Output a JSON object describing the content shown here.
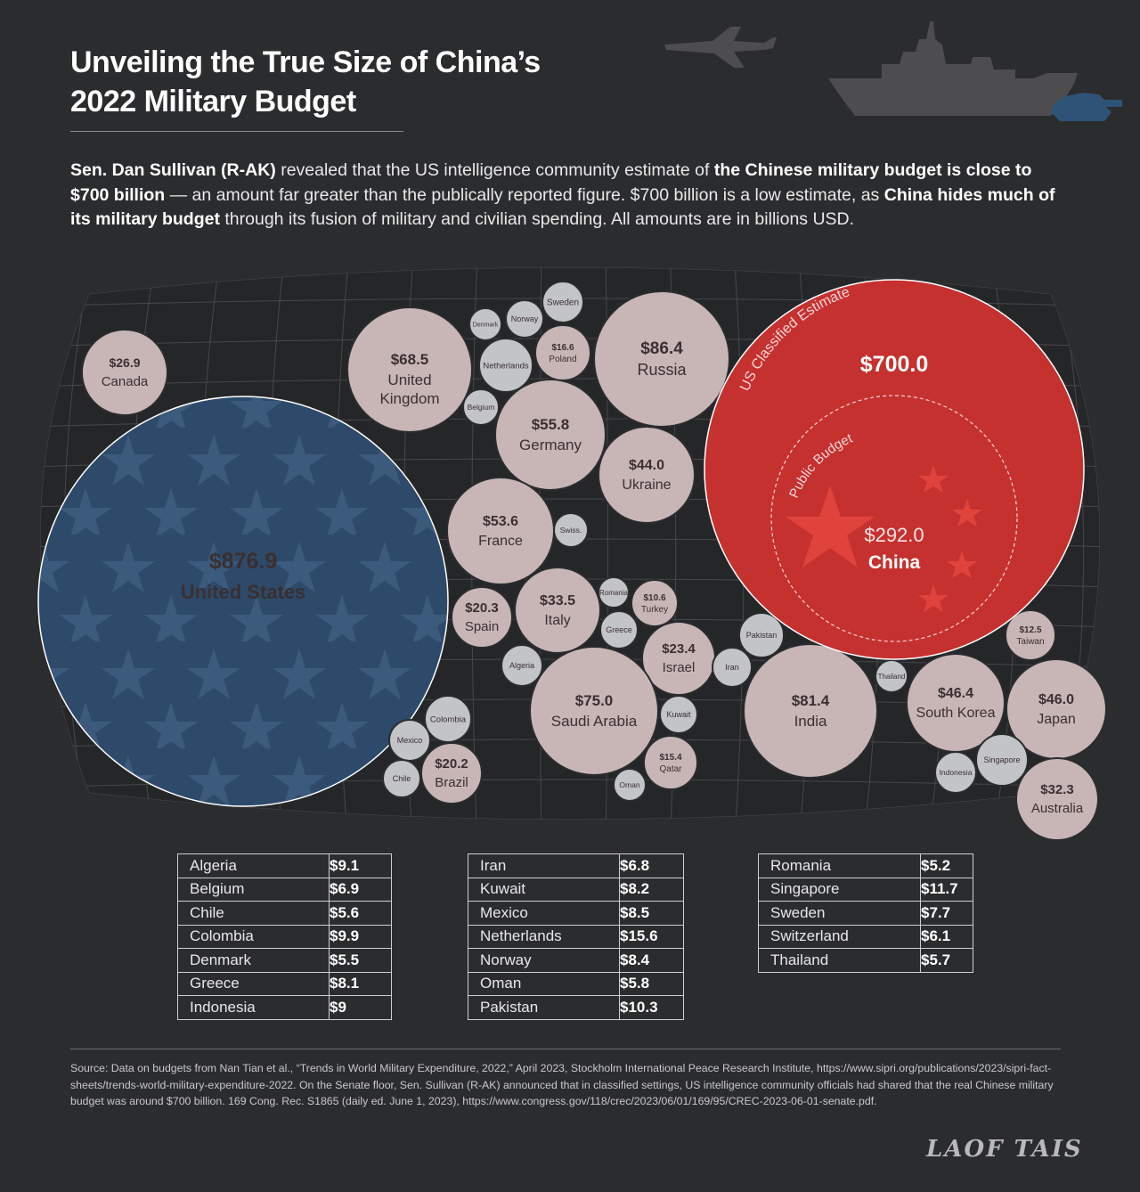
{
  "title_line1": "Unveiling the True Size of China’s",
  "title_line2": "2022 Military Budget",
  "intro": {
    "p1_bold": "Sen. Dan Sullivan (R-AK)",
    "p1": " revealed that the US intelligence community estimate of ",
    "p2_bold": "the Chinese military budget is close to $700 billion",
    "p2": " — an amount far greater than the publically reported figure. $700 billion is a low estimate, as ",
    "p3_bold": "China hides much of its military budget",
    "p3": " through its fusion of military and civilian spending. All amounts are in billions USD."
  },
  "colors": {
    "background": "#2b2c2e",
    "us": "#2d4a6a",
    "china": "#c5312f",
    "other": "#c8b6b7",
    "small": "#c3c4c7"
  },
  "chart_data": {
    "type": "bubble",
    "unit": "billions USD",
    "china": {
      "country": "China",
      "public_label": "Public Budget",
      "public_value": "$292.0",
      "classified_label": "US Classified Estimate",
      "classified_value": "$700.0"
    },
    "bubbles": [
      {
        "country": "United States",
        "value": "$876.9",
        "group": "us"
      },
      {
        "country": "Canada",
        "value": "$26.9"
      },
      {
        "country": "United Kingdom",
        "value": "$68.5"
      },
      {
        "country": "Russia",
        "value": "$86.4"
      },
      {
        "country": "Germany",
        "value": "$55.8"
      },
      {
        "country": "Ukraine",
        "value": "$44.0"
      },
      {
        "country": "France",
        "value": "$53.6"
      },
      {
        "country": "Italy",
        "value": "$33.5"
      },
      {
        "country": "Spain",
        "value": "$20.3"
      },
      {
        "country": "Israel",
        "value": "$23.4"
      },
      {
        "country": "Saudi Arabia",
        "value": "$75.0"
      },
      {
        "country": "India",
        "value": "$81.4"
      },
      {
        "country": "South Korea",
        "value": "$46.4"
      },
      {
        "country": "Japan",
        "value": "$46.0"
      },
      {
        "country": "Australia",
        "value": "$32.3"
      },
      {
        "country": "Brazil",
        "value": "$20.2"
      },
      {
        "country": "Poland",
        "value": "$16.6"
      },
      {
        "country": "Turkey",
        "value": "$10.6"
      },
      {
        "country": "Qatar",
        "value": "$15.4"
      },
      {
        "country": "Taiwan",
        "value": "$12.5"
      },
      {
        "country": "Sweden",
        "value": ""
      },
      {
        "country": "Norway",
        "value": ""
      },
      {
        "country": "Denmark",
        "value": ""
      },
      {
        "country": "Netherlands",
        "value": ""
      },
      {
        "country": "Belgium",
        "value": ""
      },
      {
        "country": "Swiss.",
        "value": ""
      },
      {
        "country": "Romania",
        "value": ""
      },
      {
        "country": "Greece",
        "value": ""
      },
      {
        "country": "Algeria",
        "value": ""
      },
      {
        "country": "Kuwait",
        "value": ""
      },
      {
        "country": "Oman",
        "value": ""
      },
      {
        "country": "Iran",
        "value": ""
      },
      {
        "country": "Pakistan",
        "value": ""
      },
      {
        "country": "Thailand",
        "value": ""
      },
      {
        "country": "Indonesia",
        "value": ""
      },
      {
        "country": "Singapore",
        "value": ""
      },
      {
        "country": "Colombia",
        "value": ""
      },
      {
        "country": "Mexico",
        "value": ""
      },
      {
        "country": "Chile",
        "value": ""
      }
    ],
    "table_columns": [
      [
        [
          "Algeria",
          "$9.1"
        ],
        [
          "Belgium",
          "$6.9"
        ],
        [
          "Chile",
          "$5.6"
        ],
        [
          "Colombia",
          "$9.9"
        ],
        [
          "Denmark",
          "$5.5"
        ],
        [
          "Greece",
          "$8.1"
        ],
        [
          "Indonesia",
          "$9"
        ]
      ],
      [
        [
          "Iran",
          "$6.8"
        ],
        [
          "Kuwait",
          "$8.2"
        ],
        [
          "Mexico",
          "$8.5"
        ],
        [
          "Netherlands",
          "$15.6"
        ],
        [
          "Norway",
          "$8.4"
        ],
        [
          "Oman",
          "$5.8"
        ],
        [
          "Pakistan",
          "$10.3"
        ]
      ],
      [
        [
          "Romania",
          "$5.2"
        ],
        [
          "Singapore",
          "$11.7"
        ],
        [
          "Sweden",
          "$7.7"
        ],
        [
          "Switzerland",
          "$6.1"
        ],
        [
          "Thailand",
          "$5.7"
        ]
      ]
    ]
  },
  "source": "Source: Data on budgets from Nan Tian et al., “Trends in World Military Expenditure, 2022,” April 2023, Stockholm International Peace Research Institute, https://www.sipri.org/publications/2023/sipri-fact-sheets/trends-world-military-expenditure-2022. On the Senate floor, Sen. Sullivan (R-AK) announced that in classified settings, US intelligence community officials had shared that the real Chinese military budget was around $700 billion. 169 Cong. Rec. S1865 (daily ed. June 1, 2023), https://www.congress.gov/118/crec/2023/06/01/169/95/CREC-2023-06-01-senate.pdf.",
  "watermark": "LAOF TAIS"
}
